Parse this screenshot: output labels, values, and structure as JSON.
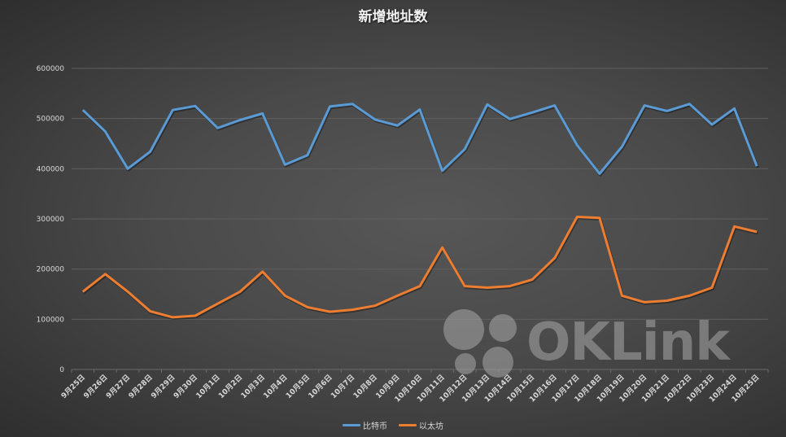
{
  "chart_data": {
    "type": "line",
    "title": "新增地址数",
    "xlabel": "",
    "ylabel": "",
    "ylim": [
      0,
      600000
    ],
    "yticks": [
      0,
      100000,
      200000,
      300000,
      400000,
      500000,
      600000
    ],
    "grid": true,
    "legend_position": "bottom",
    "categories": [
      "9月25日",
      "9月26日",
      "9月27日",
      "9月28日",
      "9月29日",
      "9月30日",
      "10月1日",
      "10月2日",
      "10月3日",
      "10月4日",
      "10月5日",
      "10月6日",
      "10月7日",
      "10月8日",
      "10月9日",
      "10月10日",
      "10月11日",
      "10月12日",
      "10月13日",
      "10月14日",
      "10月15日",
      "10月16日",
      "10月17日",
      "10月18日",
      "10月19日",
      "10月20日",
      "10月21日",
      "10月22日",
      "10月23日",
      "10月24日",
      "10月25日"
    ],
    "series": [
      {
        "name": "比特币",
        "color": "#5b9bd5",
        "values": [
          517000,
          474000,
          400000,
          434000,
          517000,
          525000,
          481000,
          497000,
          510000,
          408000,
          427000,
          524000,
          529000,
          498000,
          486000,
          518000,
          396000,
          439000,
          528000,
          499000,
          512000,
          526000,
          447000,
          390000,
          444000,
          526000,
          515000,
          529000,
          488000,
          520000,
          405000
        ]
      },
      {
        "name": "以太坊",
        "color": "#ed7d31",
        "values": [
          155000,
          190000,
          155000,
          116000,
          104000,
          107000,
          131000,
          155000,
          195000,
          147000,
          124000,
          115000,
          119000,
          127000,
          147000,
          166000,
          243000,
          166000,
          163000,
          166000,
          179000,
          222000,
          304000,
          302000,
          147000,
          134000,
          137000,
          147000,
          163000,
          285000,
          274000
        ]
      }
    ]
  },
  "watermark": {
    "text": "OKLink"
  }
}
